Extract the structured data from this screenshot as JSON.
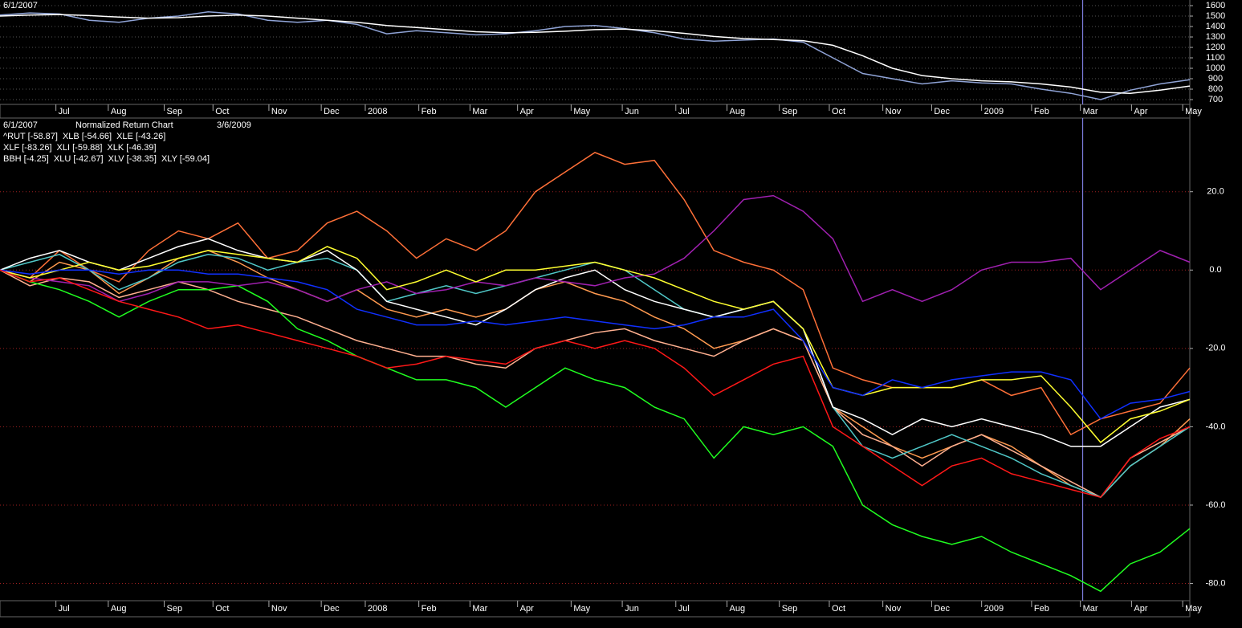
{
  "chart_data": [
    {
      "type": "line",
      "date_label": "6/1/2007",
      "grid": true,
      "cursor_x": 91.0,
      "xlim": [
        0,
        100
      ],
      "ylim": [
        654,
        1654
      ],
      "xticks": [
        {
          "value": 4.7,
          "label": "Jul"
        },
        {
          "value": 9.1,
          "label": "Aug"
        },
        {
          "value": 13.8,
          "label": "Sep"
        },
        {
          "value": 17.9,
          "label": "Oct"
        },
        {
          "value": 22.6,
          "label": "Nov"
        },
        {
          "value": 27.0,
          "label": "Dec"
        },
        {
          "value": 30.7,
          "label": "2008"
        },
        {
          "value": 35.2,
          "label": "Feb"
        },
        {
          "value": 39.5,
          "label": "Mar"
        },
        {
          "value": 43.5,
          "label": "Apr"
        },
        {
          "value": 48.0,
          "label": "May"
        },
        {
          "value": 52.3,
          "label": "Jun"
        },
        {
          "value": 56.8,
          "label": "Jul"
        },
        {
          "value": 61.1,
          "label": "Aug"
        },
        {
          "value": 65.5,
          "label": "Sep"
        },
        {
          "value": 69.7,
          "label": "Oct"
        },
        {
          "value": 74.2,
          "label": "Nov"
        },
        {
          "value": 78.3,
          "label": "Dec"
        },
        {
          "value": 82.5,
          "label": "2009"
        },
        {
          "value": 86.7,
          "label": "Feb"
        },
        {
          "value": 90.8,
          "label": "Mar"
        },
        {
          "value": 95.1,
          "label": "Apr"
        },
        {
          "value": 99.4,
          "label": "May"
        }
      ],
      "yticks": [
        700,
        800,
        900,
        1000,
        1100,
        1200,
        1300,
        1400,
        1500,
        1600
      ],
      "x": [
        0,
        2.5,
        5,
        7.5,
        10,
        12.5,
        15,
        17.5,
        20,
        22.5,
        25,
        27.5,
        30,
        32.5,
        35,
        37.5,
        40,
        42.5,
        45,
        47.5,
        50,
        52.5,
        55,
        57.5,
        60,
        62.5,
        65,
        67.5,
        70,
        72.5,
        75,
        77.5,
        80,
        82.5,
        85,
        87.5,
        90,
        92.5,
        95,
        97.5,
        100
      ],
      "series": [
        {
          "color": "#8fa3d6",
          "values": [
            1510,
            1530,
            1520,
            1460,
            1440,
            1480,
            1500,
            1540,
            1520,
            1460,
            1440,
            1460,
            1420,
            1330,
            1360,
            1340,
            1320,
            1330,
            1360,
            1400,
            1410,
            1380,
            1340,
            1280,
            1260,
            1270,
            1280,
            1250,
            1100,
            950,
            900,
            850,
            880,
            860,
            850,
            800,
            760,
            700,
            790,
            850,
            890
          ]
        },
        {
          "color": "#ffffff",
          "values": [
            1500,
            1510,
            1515,
            1505,
            1490,
            1480,
            1485,
            1500,
            1510,
            1500,
            1480,
            1460,
            1440,
            1410,
            1390,
            1370,
            1350,
            1340,
            1345,
            1355,
            1370,
            1375,
            1360,
            1335,
            1305,
            1285,
            1275,
            1265,
            1220,
            1120,
            1000,
            930,
            900,
            880,
            870,
            850,
            820,
            770,
            760,
            790,
            830
          ]
        }
      ]
    },
    {
      "type": "line",
      "date_label": "6/1/2007",
      "title": "Normalized Return Chart",
      "cursor_date": "3/6/2009",
      "grid": true,
      "cursor_x": 91.0,
      "xlim": [
        0,
        100
      ],
      "ylim": [
        -84.4,
        38.8
      ],
      "xticks": [
        {
          "value": 4.7,
          "label": "Jul"
        },
        {
          "value": 9.1,
          "label": "Aug"
        },
        {
          "value": 13.8,
          "label": "Sep"
        },
        {
          "value": 17.9,
          "label": "Oct"
        },
        {
          "value": 22.6,
          "label": "Nov"
        },
        {
          "value": 27.0,
          "label": "Dec"
        },
        {
          "value": 30.7,
          "label": "2008"
        },
        {
          "value": 35.2,
          "label": "Feb"
        },
        {
          "value": 39.5,
          "label": "Mar"
        },
        {
          "value": 43.5,
          "label": "Apr"
        },
        {
          "value": 48.0,
          "label": "May"
        },
        {
          "value": 52.3,
          "label": "Jun"
        },
        {
          "value": 56.8,
          "label": "Jul"
        },
        {
          "value": 61.1,
          "label": "Aug"
        },
        {
          "value": 65.5,
          "label": "Sep"
        },
        {
          "value": 69.7,
          "label": "Oct"
        },
        {
          "value": 74.2,
          "label": "Nov"
        },
        {
          "value": 78.3,
          "label": "Dec"
        },
        {
          "value": 82.5,
          "label": "2009"
        },
        {
          "value": 86.7,
          "label": "Feb"
        },
        {
          "value": 90.8,
          "label": "Mar"
        },
        {
          "value": 95.1,
          "label": "Apr"
        },
        {
          "value": 99.4,
          "label": "May"
        }
      ],
      "yticks": [
        {
          "value": 20,
          "label": "20.0"
        },
        {
          "value": 0,
          "label": "0.0"
        },
        {
          "value": -20,
          "label": "-20.0"
        },
        {
          "value": -40,
          "label": "-40.0"
        },
        {
          "value": -60,
          "label": "-60.0"
        },
        {
          "value": -80,
          "label": "-80.0"
        }
      ],
      "x": [
        0,
        2.5,
        5,
        7.5,
        10,
        12.5,
        15,
        17.5,
        20,
        22.5,
        25,
        27.5,
        30,
        32.5,
        35,
        37.5,
        40,
        42.5,
        45,
        47.5,
        50,
        52.5,
        55,
        57.5,
        60,
        62.5,
        65,
        67.5,
        70,
        72.5,
        75,
        77.5,
        80,
        82.5,
        85,
        87.5,
        90,
        92.5,
        95,
        97.5,
        100
      ],
      "series": [
        {
          "name": "^RUT [-58.87]",
          "color": "#ff9a50",
          "values": [
            0,
            -3,
            2,
            0,
            -6,
            -2,
            3,
            5,
            2,
            -2,
            -5,
            -8,
            -5,
            -10,
            -12,
            -10,
            -12,
            -10,
            -5,
            -3,
            -6,
            -8,
            -12,
            -15,
            -20,
            -18,
            -15,
            -18,
            -35,
            -40,
            -45,
            -48,
            -45,
            -42,
            -45,
            -50,
            -55,
            -58,
            -50,
            -45,
            -38
          ]
        },
        {
          "name": "XLB [-54.66]",
          "color": "#ffb090",
          "values": [
            0,
            -4,
            -2,
            -3,
            -7,
            -5,
            -3,
            -5,
            -8,
            -10,
            -12,
            -15,
            -18,
            -20,
            -22,
            -22,
            -24,
            -25,
            -20,
            -18,
            -16,
            -15,
            -18,
            -20,
            -22,
            -18,
            -15,
            -18,
            -35,
            -42,
            -45,
            -50,
            -45,
            -42,
            -46,
            -50,
            -54,
            -58,
            -48,
            -44,
            -40
          ]
        },
        {
          "name": "XLE [-43.26]",
          "color": "#ff7038",
          "values": [
            0,
            -2,
            5,
            0,
            -3,
            5,
            10,
            8,
            12,
            3,
            5,
            12,
            15,
            10,
            3,
            8,
            5,
            10,
            20,
            25,
            30,
            27,
            28,
            18,
            5,
            2,
            0,
            -5,
            -25,
            -28,
            -30,
            -30,
            -30,
            -28,
            -32,
            -30,
            -42,
            -38,
            -36,
            -34,
            -25
          ]
        },
        {
          "name": "XLF [-83.26]",
          "color": "#20ff20",
          "values": [
            0,
            -3,
            -5,
            -8,
            -12,
            -8,
            -5,
            -5,
            -4,
            -8,
            -15,
            -18,
            -22,
            -25,
            -28,
            -28,
            -30,
            -35,
            -30,
            -25,
            -28,
            -30,
            -35,
            -38,
            -48,
            -40,
            -42,
            -40,
            -45,
            -60,
            -65,
            -68,
            -70,
            -68,
            -72,
            -75,
            -78,
            -82,
            -75,
            -72,
            -66
          ]
        },
        {
          "name": "XLI [-59.88]",
          "color": "#50c8c8",
          "values": [
            0,
            2,
            4,
            0,
            -5,
            -2,
            2,
            4,
            3,
            0,
            2,
            3,
            0,
            -8,
            -6,
            -4,
            -6,
            -4,
            -2,
            0,
            2,
            0,
            -5,
            -10,
            -12,
            -10,
            -8,
            -15,
            -35,
            -45,
            -48,
            -45,
            -42,
            -45,
            -48,
            -52,
            -55,
            -58,
            -50,
            -45,
            -40
          ]
        },
        {
          "name": "XLK [-46.39]",
          "color": "#ffffff",
          "values": [
            0,
            3,
            5,
            2,
            0,
            3,
            6,
            8,
            5,
            3,
            2,
            5,
            0,
            -8,
            -10,
            -12,
            -14,
            -10,
            -5,
            -2,
            0,
            -5,
            -8,
            -10,
            -12,
            -10,
            -8,
            -15,
            -35,
            -38,
            -42,
            -38,
            -40,
            -38,
            -40,
            -42,
            -45,
            -45,
            -40,
            -35,
            -33
          ]
        },
        {
          "name": "BBH [-4.25]",
          "color": "#a020b0",
          "values": [
            0,
            -2,
            -3,
            -4,
            -8,
            -6,
            -3,
            -3,
            -4,
            -3,
            -5,
            -8,
            -5,
            -3,
            -6,
            -5,
            -3,
            -4,
            -2,
            -3,
            -4,
            -2,
            -1,
            3,
            10,
            18,
            19,
            15,
            8,
            -8,
            -5,
            -8,
            -5,
            0,
            2,
            2,
            3,
            -5,
            0,
            5,
            2
          ]
        },
        {
          "name": "XLU [-42.67]",
          "color": "#ffff30",
          "values": [
            0,
            -2,
            0,
            2,
            0,
            1,
            3,
            5,
            4,
            3,
            2,
            6,
            3,
            -5,
            -3,
            0,
            -3,
            0,
            0,
            1,
            2,
            0,
            -2,
            -5,
            -8,
            -10,
            -8,
            -15,
            -30,
            -32,
            -30,
            -30,
            -30,
            -28,
            -28,
            -27,
            -35,
            -44,
            -38,
            -36,
            -33
          ]
        },
        {
          "name": "XLV [-38.35]",
          "color": "#1030ff",
          "values": [
            0,
            -1,
            0,
            0,
            -1,
            0,
            0,
            -1,
            -1,
            -2,
            -3,
            -5,
            -10,
            -12,
            -14,
            -14,
            -13,
            -14,
            -13,
            -12,
            -13,
            -14,
            -15,
            -14,
            -12,
            -12,
            -10,
            -18,
            -30,
            -32,
            -28,
            -30,
            -28,
            -27,
            -26,
            -26,
            -28,
            -38,
            -34,
            -33,
            -31
          ]
        },
        {
          "name": "XLY [-59.04]",
          "color": "#ff1818",
          "values": [
            0,
            -3,
            -2,
            -5,
            -8,
            -10,
            -12,
            -15,
            -14,
            -16,
            -18,
            -20,
            -22,
            -25,
            -24,
            -22,
            -23,
            -24,
            -20,
            -18,
            -20,
            -18,
            -20,
            -25,
            -32,
            -28,
            -24,
            -22,
            -40,
            -45,
            -50,
            -55,
            -50,
            -48,
            -52,
            -54,
            -56,
            -58,
            -48,
            -43,
            -40
          ]
        }
      ]
    }
  ]
}
